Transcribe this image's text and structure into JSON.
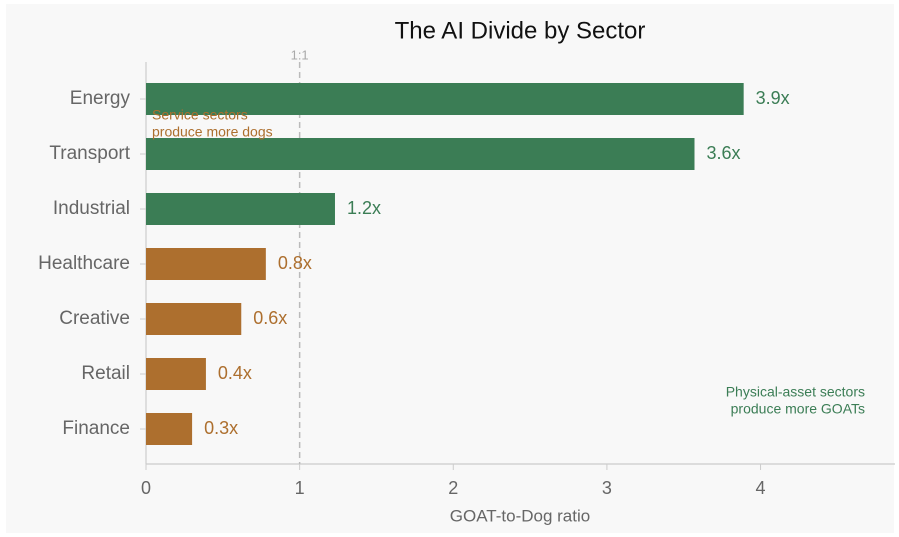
{
  "chart_data": {
    "type": "barh",
    "title": "The AI Divide by Sector",
    "xlabel": "GOAT-to-Dog ratio",
    "categories": [
      "Energy",
      "Transport",
      "Industrial",
      "Healthcare",
      "Creative",
      "Retail",
      "Finance"
    ],
    "values": [
      3.89,
      3.57,
      1.23,
      0.78,
      0.62,
      0.39,
      0.3
    ],
    "value_labels": [
      "3.9x",
      "3.6x",
      "1.2x",
      "0.8x",
      "0.6x",
      "0.4x",
      "0.3x"
    ],
    "colors": [
      "#3b7d55",
      "#3b7d55",
      "#3b7d55",
      "#ad6f2e",
      "#ad6f2e",
      "#ad6f2e",
      "#ad6f2e"
    ],
    "xlim": [
      0,
      4.875
    ],
    "xticks": [
      0,
      1,
      2,
      3,
      4
    ],
    "reference_line": {
      "value": 1,
      "label": "1:1"
    },
    "annotations": [
      {
        "lines": [
          "Service sectors",
          "produce more dogs"
        ],
        "color": "#ad6f2e"
      },
      {
        "lines": [
          "Physical-asset sectors",
          "produce more GOATs"
        ],
        "color": "#3b7d55"
      }
    ]
  }
}
